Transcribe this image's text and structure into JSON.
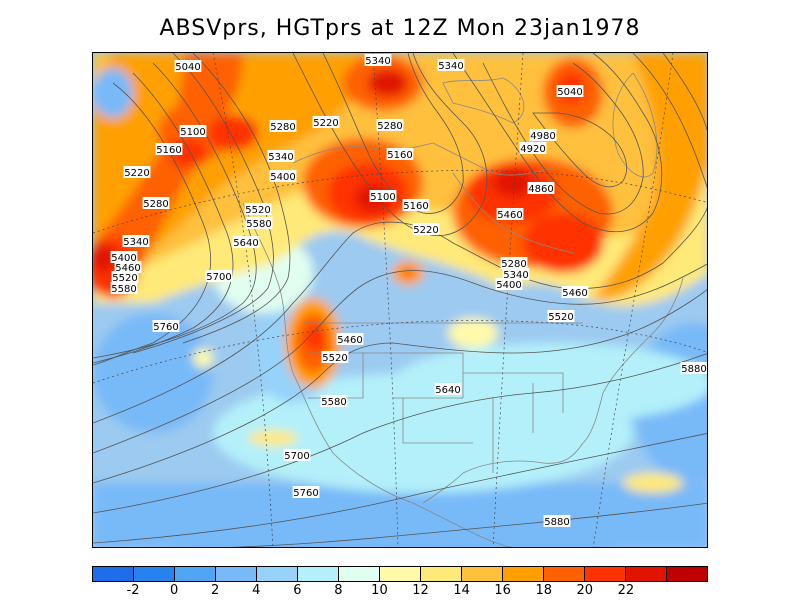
{
  "title": "ABSVprs, HGTprs at 12Z Mon 23jan1978",
  "map": {
    "fields": [
      "ABSVprs",
      "HGTprs"
    ],
    "time": "12Z Mon 23jan1978",
    "region": "North America and surrounding oceans",
    "contour_color": "#555555",
    "boundary_color": "#888888",
    "contour_labels": [
      "5040",
      "5340",
      "5340",
      "5040",
      "5100",
      "5280",
      "5220",
      "5280",
      "4980",
      "5160",
      "5340",
      "5160",
      "4920",
      "5220",
      "5400",
      "4860",
      "5280",
      "5460",
      "5100",
      "5160",
      "5520",
      "5580",
      "5220",
      "5340",
      "5640",
      "5400",
      "5460",
      "5520",
      "5580",
      "5700",
      "5280",
      "5340",
      "5400",
      "5460",
      "5760",
      "5520",
      "5460",
      "5520",
      "5580",
      "5640",
      "5880",
      "5700",
      "5760",
      "5880"
    ]
  },
  "colorbar": {
    "colors": [
      "#1e6eeb",
      "#2882ee",
      "#50a5f5",
      "#78b9f8",
      "#96d2fa",
      "#b4f0fa",
      "#e1fff0",
      "#fffaaa",
      "#ffe978",
      "#ffc03c",
      "#ffa000",
      "#ff6000",
      "#ff3200",
      "#e11400",
      "#c00000"
    ],
    "tick_labels": [
      "-2",
      "0",
      "2",
      "4",
      "6",
      "8",
      "10",
      "12",
      "14",
      "16",
      "18",
      "20",
      "22"
    ]
  }
}
